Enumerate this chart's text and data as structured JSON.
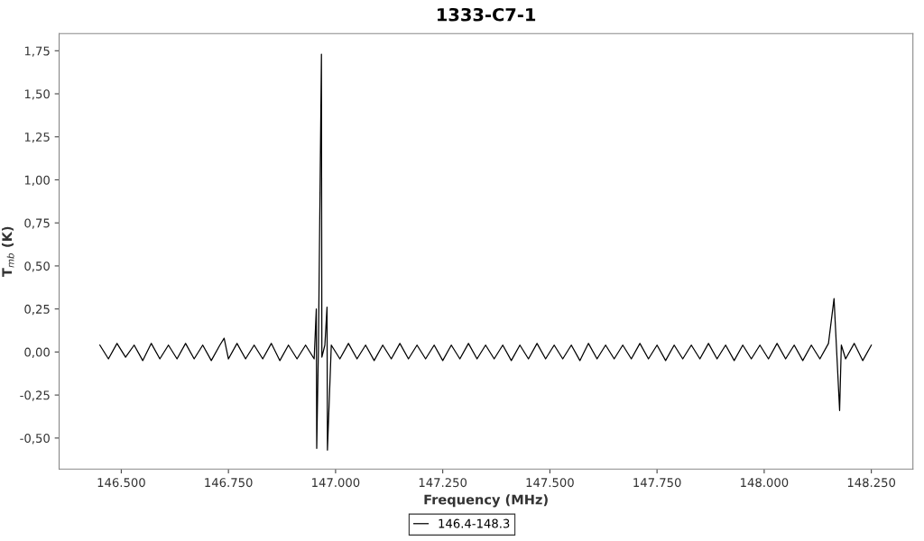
{
  "chart_data": {
    "type": "line",
    "title": "1333-C7-1",
    "xlabel": "Frequency (MHz)",
    "ylabel": "T$_{mb}$ (K)",
    "xlim": [
      146355,
      148347
    ],
    "ylim": [
      -0.68,
      1.85
    ],
    "xticks": [
      {
        "value": 146500,
        "label": "146.500"
      },
      {
        "value": 146750,
        "label": "146.750"
      },
      {
        "value": 147000,
        "label": "147.000"
      },
      {
        "value": 147250,
        "label": "147.250"
      },
      {
        "value": 147500,
        "label": "147.500"
      },
      {
        "value": 147750,
        "label": "147.750"
      },
      {
        "value": 148000,
        "label": "148.000"
      },
      {
        "value": 148250,
        "label": "148.250"
      }
    ],
    "yticks": [
      {
        "value": -0.5,
        "label": "-0,50"
      },
      {
        "value": -0.25,
        "label": "-0,25"
      },
      {
        "value": 0,
        "label": "0,00"
      },
      {
        "value": 0.25,
        "label": "0,25"
      },
      {
        "value": 0.5,
        "label": "0,50"
      },
      {
        "value": 0.75,
        "label": "0,75"
      },
      {
        "value": 1.0,
        "label": "1,00"
      },
      {
        "value": 1.25,
        "label": "1,25"
      },
      {
        "value": 1.5,
        "label": "1,50"
      },
      {
        "value": 1.75,
        "label": "1,75"
      }
    ],
    "grid": false,
    "legend": "bottom",
    "marker": "none",
    "line_style": "solid",
    "series": [
      {
        "name": "146.4-148.3",
        "color": "#000000",
        "x": [
          146450,
          146470,
          146490,
          146510,
          146530,
          146550,
          146570,
          146590,
          146610,
          146630,
          146650,
          146670,
          146690,
          146710,
          146730,
          146740,
          146750,
          146770,
          146790,
          146810,
          146830,
          146850,
          146870,
          146890,
          146910,
          146930,
          146950,
          146955,
          146956,
          146960,
          146967,
          146968,
          146975,
          146980,
          146981,
          146990,
          147010,
          147030,
          147050,
          147070,
          147090,
          147110,
          147130,
          147150,
          147170,
          147190,
          147210,
          147230,
          147250,
          147270,
          147290,
          147310,
          147330,
          147350,
          147370,
          147390,
          147410,
          147430,
          147450,
          147470,
          147490,
          147510,
          147530,
          147550,
          147570,
          147590,
          147610,
          147630,
          147650,
          147670,
          147690,
          147710,
          147730,
          147750,
          147770,
          147790,
          147810,
          147830,
          147850,
          147870,
          147890,
          147910,
          147930,
          147950,
          147970,
          147990,
          148010,
          148030,
          148050,
          148070,
          148090,
          148110,
          148130,
          148150,
          148163,
          148170,
          148176,
          148180,
          148190,
          148210,
          148230,
          148250
        ],
        "values": [
          0.04,
          -0.04,
          0.05,
          -0.03,
          0.04,
          -0.05,
          0.05,
          -0.04,
          0.04,
          -0.04,
          0.05,
          -0.04,
          0.04,
          -0.05,
          0.04,
          0.08,
          -0.04,
          0.05,
          -0.04,
          0.04,
          -0.04,
          0.05,
          -0.05,
          0.04,
          -0.04,
          0.04,
          -0.04,
          0.25,
          -0.56,
          0.03,
          1.73,
          -0.03,
          0.04,
          0.26,
          -0.57,
          0.04,
          -0.04,
          0.05,
          -0.04,
          0.04,
          -0.05,
          0.04,
          -0.04,
          0.05,
          -0.04,
          0.04,
          -0.04,
          0.04,
          -0.05,
          0.04,
          -0.04,
          0.05,
          -0.04,
          0.04,
          -0.04,
          0.04,
          -0.05,
          0.04,
          -0.04,
          0.05,
          -0.04,
          0.04,
          -0.04,
          0.04,
          -0.05,
          0.05,
          -0.04,
          0.04,
          -0.04,
          0.04,
          -0.04,
          0.05,
          -0.04,
          0.04,
          -0.05,
          0.04,
          -0.04,
          0.04,
          -0.04,
          0.05,
          -0.04,
          0.04,
          -0.05,
          0.04,
          -0.04,
          0.04,
          -0.04,
          0.05,
          -0.04,
          0.04,
          -0.05,
          0.04,
          -0.04,
          0.05,
          0.31,
          -0.04,
          -0.34,
          0.04,
          -0.04,
          0.05,
          -0.05,
          0.04
        ]
      }
    ]
  }
}
